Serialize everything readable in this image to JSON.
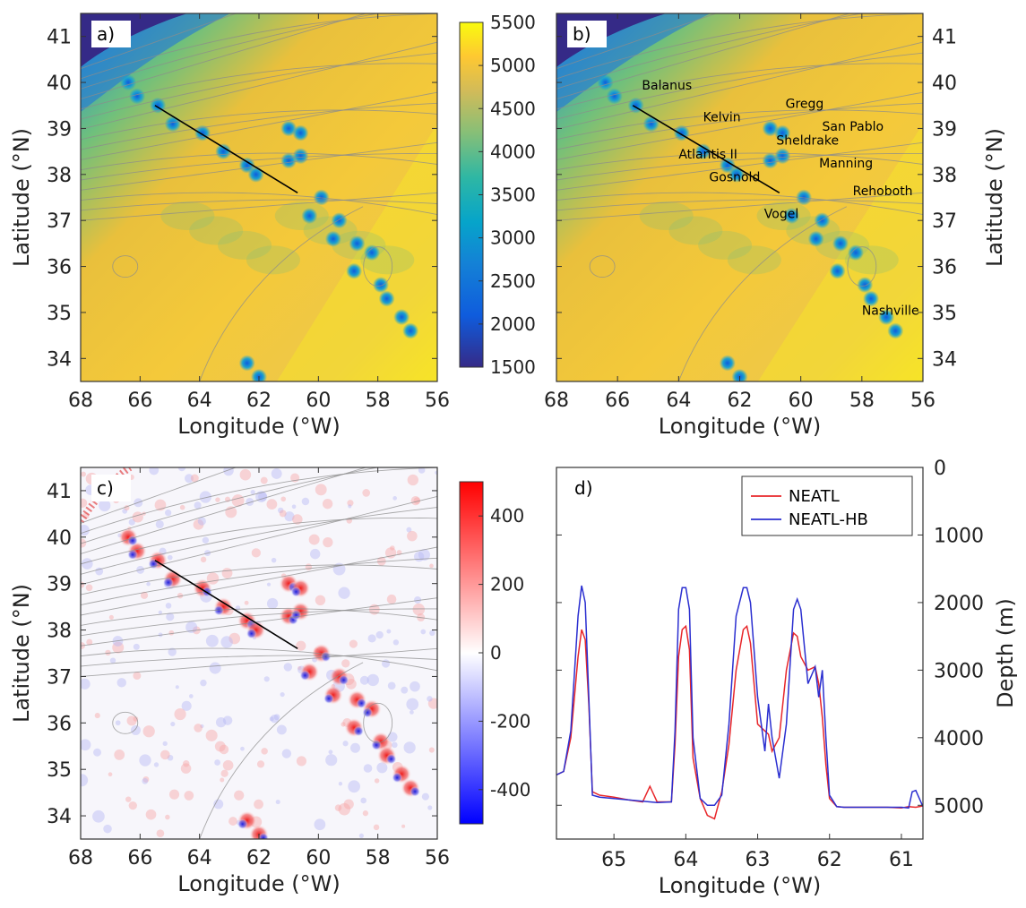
{
  "chart_data": [
    {
      "panel": "a)",
      "type": "heatmap",
      "xlabel": "Longitude (°W)",
      "ylabel": "Latitude (°N)",
      "xlim": [
        68,
        56
      ],
      "ylim": [
        33.5,
        41.5
      ],
      "xticks": [
        "68",
        "66",
        "64",
        "62",
        "60",
        "58",
        "56"
      ],
      "yticks": [
        "34",
        "35",
        "36",
        "37",
        "38",
        "39",
        "40",
        "41"
      ],
      "colorbar": {
        "ticks": [
          "1500",
          "2000",
          "2500",
          "3000",
          "3500",
          "4000",
          "4500",
          "5000",
          "5500"
        ],
        "range": [
          1500,
          5500
        ],
        "colormap": "parula"
      },
      "section_line": {
        "start": [
          65.5,
          39.5
        ],
        "end": [
          60.7,
          37.6
        ]
      }
    },
    {
      "panel": "b)",
      "type": "heatmap",
      "xlabel": "Longitude (°W)",
      "ylabel": "Latitude (°N)",
      "xlim": [
        68,
        56
      ],
      "ylim": [
        33.5,
        41.5
      ],
      "xticks": [
        "68",
        "66",
        "64",
        "62",
        "60",
        "58",
        "56"
      ],
      "yticks": [
        "34",
        "35",
        "36",
        "37",
        "38",
        "39",
        "40",
        "41"
      ],
      "section_line": {
        "start": [
          65.5,
          39.5
        ],
        "end": [
          60.7,
          37.6
        ]
      },
      "annotations": [
        {
          "text": "Balanus",
          "lon": 65.2,
          "lat": 39.85
        },
        {
          "text": "Gregg",
          "lon": 60.5,
          "lat": 39.45
        },
        {
          "text": "Kelvin",
          "lon": 63.2,
          "lat": 39.15
        },
        {
          "text": "San Pablo",
          "lon": 59.3,
          "lat": 38.95
        },
        {
          "text": "Sheldrake",
          "lon": 60.8,
          "lat": 38.65
        },
        {
          "text": "Atlantis II",
          "lon": 64.0,
          "lat": 38.35
        },
        {
          "text": "Manning",
          "lon": 59.4,
          "lat": 38.15
        },
        {
          "text": "Gosnold",
          "lon": 63.0,
          "lat": 37.85
        },
        {
          "text": "Rehoboth",
          "lon": 58.3,
          "lat": 37.55
        },
        {
          "text": "Vogel",
          "lon": 61.2,
          "lat": 37.05
        },
        {
          "text": "Nashville",
          "lon": 58.0,
          "lat": 34.95
        }
      ]
    },
    {
      "panel": "c)",
      "type": "heatmap",
      "xlabel": "Longitude (°W)",
      "ylabel": "Latitude (°N)",
      "xlim": [
        68,
        56
      ],
      "ylim": [
        33.5,
        41.5
      ],
      "xticks": [
        "68",
        "66",
        "64",
        "62",
        "60",
        "58",
        "56"
      ],
      "yticks": [
        "34",
        "35",
        "36",
        "37",
        "38",
        "39",
        "40",
        "41"
      ],
      "colorbar": {
        "ticks": [
          "400",
          "200",
          "0",
          "-200",
          "-400"
        ],
        "range": [
          -500,
          500
        ],
        "colormap": "blue-white-red"
      },
      "section_line": {
        "start": [
          65.5,
          39.5
        ],
        "end": [
          60.7,
          37.6
        ]
      }
    },
    {
      "panel": "d)",
      "type": "line",
      "xlabel": "Longitude (°W)",
      "ylabel": "Depth (m)",
      "xlim": [
        65.8,
        60.7
      ],
      "ylim": [
        0,
        5500
      ],
      "y_reversed": true,
      "xticks": [
        "65",
        "64",
        "63",
        "62",
        "61"
      ],
      "yticks": [
        "0",
        "1000",
        "2000",
        "3000",
        "4000",
        "5000"
      ],
      "legend": "top-right",
      "series": [
        {
          "name": "NEATL",
          "color": "#e8262a",
          "x": [
            65.8,
            65.7,
            65.6,
            65.5,
            65.45,
            65.4,
            65.35,
            65.3,
            65.2,
            65.0,
            64.8,
            64.6,
            64.5,
            64.4,
            64.2,
            64.15,
            64.1,
            64.05,
            64.0,
            63.95,
            63.9,
            63.8,
            63.7,
            63.6,
            63.5,
            63.4,
            63.3,
            63.2,
            63.15,
            63.1,
            63.0,
            62.9,
            62.85,
            62.8,
            62.7,
            62.6,
            62.5,
            62.45,
            62.4,
            62.3,
            62.2,
            62.15,
            62.1,
            62.05,
            62.0,
            61.9,
            61.8,
            61.6,
            61.4,
            61.2,
            61.0,
            60.9,
            60.8,
            60.7
          ],
          "y": [
            4550,
            4500,
            4000,
            2800,
            2400,
            2550,
            3500,
            4800,
            4850,
            4880,
            4920,
            4950,
            4720,
            4950,
            4950,
            4100,
            2800,
            2400,
            2350,
            2700,
            4300,
            4900,
            5150,
            5200,
            4800,
            4100,
            3000,
            2400,
            2350,
            2600,
            3800,
            3900,
            3950,
            4200,
            4000,
            3000,
            2450,
            2500,
            2800,
            3000,
            2950,
            3200,
            3700,
            4400,
            4900,
            5020,
            5030,
            5030,
            5030,
            5030,
            5040,
            5020,
            5030,
            5010
          ]
        },
        {
          "name": "NEATL-HB",
          "color": "#2b2fd0",
          "x": [
            65.8,
            65.7,
            65.6,
            65.5,
            65.45,
            65.4,
            65.35,
            65.3,
            65.2,
            65.0,
            64.8,
            64.6,
            64.5,
            64.4,
            64.2,
            64.15,
            64.1,
            64.05,
            64.0,
            63.95,
            63.9,
            63.8,
            63.7,
            63.6,
            63.5,
            63.4,
            63.3,
            63.2,
            63.15,
            63.1,
            63.0,
            62.9,
            62.85,
            62.8,
            62.7,
            62.6,
            62.5,
            62.45,
            62.4,
            62.3,
            62.2,
            62.15,
            62.1,
            62.05,
            62.0,
            61.9,
            61.8,
            61.6,
            61.4,
            61.2,
            61.0,
            60.9,
            60.85,
            60.8,
            60.7
          ],
          "y": [
            4550,
            4500,
            3900,
            2200,
            1750,
            2000,
            3400,
            4850,
            4880,
            4900,
            4920,
            4940,
            4950,
            4960,
            4950,
            3900,
            2100,
            1780,
            1780,
            2100,
            4000,
            4900,
            5000,
            5000,
            4850,
            3800,
            2200,
            1780,
            1780,
            2000,
            3400,
            4200,
            3500,
            4000,
            4600,
            3800,
            2100,
            1950,
            2100,
            3200,
            2950,
            3400,
            3000,
            4000,
            4850,
            5020,
            5030,
            5030,
            5030,
            5030,
            5030,
            5040,
            4800,
            4780,
            5020
          ]
        }
      ]
    }
  ]
}
